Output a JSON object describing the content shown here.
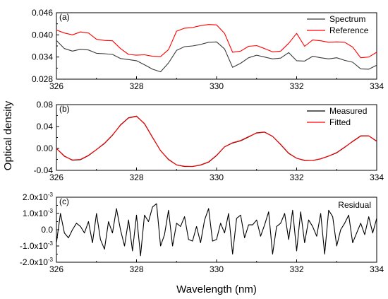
{
  "figure": {
    "ylabel": "Optical density",
    "xlabel": "Wavelength (nm)"
  },
  "colors": {
    "black": "#000000",
    "red": "#ff0000"
  },
  "chart_data": [
    {
      "panel": "(a)",
      "type": "line",
      "xlim": [
        326,
        334
      ],
      "ylim": [
        0.028,
        0.046
      ],
      "xticks": [
        "326",
        "328",
        "330",
        "332",
        "334"
      ],
      "yticks": [
        {
          "value": 0.028,
          "label": "0.028"
        },
        {
          "value": 0.034,
          "label": "0.034"
        },
        {
          "value": 0.04,
          "label": "0.040"
        },
        {
          "value": 0.046,
          "label": "0.046"
        }
      ],
      "legend_position": "top-right",
      "series": [
        {
          "name": "Spectrum",
          "color": "#3a3a3a",
          "x": [
            326.0,
            326.2,
            326.4,
            326.6,
            326.8,
            327.0,
            327.2,
            327.4,
            327.6,
            327.8,
            328.0,
            328.2,
            328.4,
            328.6,
            328.8,
            329.0,
            329.2,
            329.4,
            329.6,
            329.8,
            330.0,
            330.2,
            330.4,
            330.6,
            330.8,
            331.0,
            331.2,
            331.4,
            331.6,
            331.8,
            332.0,
            332.2,
            332.4,
            332.6,
            332.8,
            333.0,
            333.2,
            333.4,
            333.6,
            333.8,
            334.0
          ],
          "values": [
            0.0385,
            0.0363,
            0.0356,
            0.0361,
            0.0359,
            0.035,
            0.0349,
            0.0347,
            0.0336,
            0.0333,
            0.033,
            0.0319,
            0.0307,
            0.03,
            0.0324,
            0.0358,
            0.0368,
            0.037,
            0.0374,
            0.038,
            0.0381,
            0.0362,
            0.0312,
            0.0323,
            0.0338,
            0.0345,
            0.034,
            0.0335,
            0.0337,
            0.0352,
            0.033,
            0.0329,
            0.0342,
            0.0338,
            0.0335,
            0.0338,
            0.0331,
            0.0326,
            0.0308,
            0.0307,
            0.0318
          ]
        },
        {
          "name": "Reference",
          "color": "#ff0000",
          "x": [
            326.0,
            326.2,
            326.4,
            326.6,
            326.8,
            327.0,
            327.2,
            327.4,
            327.6,
            327.8,
            328.0,
            328.2,
            328.4,
            328.6,
            328.8,
            329.0,
            329.2,
            329.4,
            329.6,
            329.8,
            330.0,
            330.2,
            330.4,
            330.6,
            330.8,
            331.0,
            331.2,
            331.4,
            331.6,
            331.8,
            332.0,
            332.2,
            332.4,
            332.6,
            332.8,
            333.0,
            333.2,
            333.4,
            333.6,
            333.8,
            334.0
          ],
          "values": [
            0.0413,
            0.0405,
            0.04,
            0.0408,
            0.0405,
            0.0388,
            0.0385,
            0.0384,
            0.0363,
            0.0347,
            0.0345,
            0.0346,
            0.0342,
            0.0341,
            0.036,
            0.041,
            0.0418,
            0.042,
            0.0425,
            0.0428,
            0.0427,
            0.0404,
            0.0353,
            0.0356,
            0.0369,
            0.0371,
            0.0363,
            0.0354,
            0.0356,
            0.0377,
            0.0404,
            0.0369,
            0.0386,
            0.0384,
            0.038,
            0.0381,
            0.038,
            0.0367,
            0.0338,
            0.034,
            0.0353
          ]
        }
      ]
    },
    {
      "panel": "(b)",
      "type": "line",
      "xlim": [
        326,
        334
      ],
      "ylim": [
        -0.04,
        0.08
      ],
      "xticks": [
        "326",
        "328",
        "330",
        "332",
        "334"
      ],
      "yticks": [
        {
          "value": -0.04,
          "label": "-0.04"
        },
        {
          "value": 0.0,
          "label": "0.00"
        },
        {
          "value": 0.04,
          "label": "0.04"
        },
        {
          "value": 0.08,
          "label": "0.08"
        }
      ],
      "legend_position": "top-right",
      "series": [
        {
          "name": "Measured",
          "color": "#000000",
          "x": [
            326.0,
            326.2,
            326.4,
            326.6,
            326.8,
            327.0,
            327.2,
            327.4,
            327.6,
            327.8,
            328.0,
            328.2,
            328.4,
            328.6,
            328.8,
            329.0,
            329.2,
            329.4,
            329.6,
            329.8,
            330.0,
            330.2,
            330.4,
            330.6,
            330.8,
            331.0,
            331.2,
            331.4,
            331.6,
            331.8,
            332.0,
            332.2,
            332.4,
            332.6,
            332.8,
            333.0,
            333.2,
            333.4,
            333.6,
            333.8,
            334.0
          ],
          "values": [
            0.0,
            -0.014,
            -0.0215,
            -0.0205,
            -0.013,
            -0.002,
            0.009,
            0.024,
            0.043,
            0.056,
            0.059,
            0.045,
            0.02,
            -0.004,
            -0.02,
            -0.03,
            -0.033,
            -0.033,
            -0.0305,
            -0.025,
            -0.013,
            0.003,
            0.01,
            0.014,
            0.021,
            0.0285,
            0.03,
            0.022,
            0.007,
            -0.009,
            -0.018,
            -0.022,
            -0.022,
            -0.019,
            -0.014,
            -0.008,
            0.002,
            0.013,
            0.023,
            0.023,
            0.013
          ]
        },
        {
          "name": "Fitted",
          "color": "#ff0000",
          "x": [
            326.0,
            326.2,
            326.4,
            326.6,
            326.8,
            327.0,
            327.2,
            327.4,
            327.6,
            327.8,
            328.0,
            328.2,
            328.4,
            328.6,
            328.8,
            329.0,
            329.2,
            329.4,
            329.6,
            329.8,
            330.0,
            330.2,
            330.4,
            330.6,
            330.8,
            331.0,
            331.2,
            331.4,
            331.6,
            331.8,
            332.0,
            332.2,
            332.4,
            332.6,
            332.8,
            333.0,
            333.2,
            333.4,
            333.6,
            333.8,
            334.0
          ],
          "values": [
            0.0,
            -0.0145,
            -0.021,
            -0.02,
            -0.0125,
            -0.002,
            0.0095,
            0.0245,
            0.0425,
            0.0555,
            0.0585,
            0.0455,
            0.0205,
            -0.004,
            -0.0205,
            -0.03,
            -0.0325,
            -0.033,
            -0.03,
            -0.0245,
            -0.0125,
            0.003,
            0.0105,
            0.0145,
            0.0215,
            0.028,
            0.0295,
            0.022,
            0.0075,
            -0.0085,
            -0.018,
            -0.0215,
            -0.022,
            -0.019,
            -0.014,
            -0.0075,
            0.0025,
            0.0125,
            0.0225,
            0.023,
            0.0135
          ]
        }
      ]
    },
    {
      "panel": "(c)",
      "type": "line",
      "xlim": [
        326,
        334
      ],
      "ylim": [
        -0.002,
        0.002
      ],
      "xticks": [
        "326",
        "328",
        "330",
        "332",
        "334"
      ],
      "yticks": [
        {
          "value": -0.002,
          "base": "-2.0x10",
          "exp": "-3"
        },
        {
          "value": -0.001,
          "base": "-1.0x10",
          "exp": "-3"
        },
        {
          "value": 0.0,
          "base": "0.0",
          "exp": ""
        },
        {
          "value": 0.001,
          "base": "1.0x10",
          "exp": "-3"
        },
        {
          "value": 0.002,
          "base": "2.0x10",
          "exp": "-3"
        }
      ],
      "legend_position": "top-right",
      "series": [
        {
          "name": "Residual",
          "color": "#000000",
          "x": [
            326.0,
            326.1,
            326.2,
            326.3,
            326.4,
            326.5,
            326.6,
            326.7,
            326.8,
            326.9,
            327.0,
            327.1,
            327.2,
            327.3,
            327.4,
            327.5,
            327.6,
            327.7,
            327.8,
            327.9,
            328.0,
            328.1,
            328.2,
            328.3,
            328.4,
            328.5,
            328.6,
            328.7,
            328.8,
            328.9,
            329.0,
            329.1,
            329.2,
            329.3,
            329.4,
            329.5,
            329.6,
            329.7,
            329.8,
            329.9,
            330.0,
            330.1,
            330.2,
            330.3,
            330.4,
            330.5,
            330.6,
            330.7,
            330.8,
            330.9,
            331.0,
            331.1,
            331.2,
            331.3,
            331.4,
            331.5,
            331.6,
            331.7,
            331.8,
            331.9,
            332.0,
            332.1,
            332.2,
            332.3,
            332.4,
            332.5,
            332.6,
            332.7,
            332.8,
            332.9,
            333.0,
            333.1,
            333.2,
            333.3,
            333.4,
            333.5,
            333.6,
            333.7,
            333.8,
            333.9,
            334.0
          ],
          "values": [
            -0.0008,
            0.001,
            -0.0002,
            -0.0005,
            0.0,
            0.0004,
            0.0002,
            -0.0002,
            0.0005,
            -0.0008,
            0.001,
            -0.0006,
            -0.0012,
            0.0005,
            -0.0002,
            0.0013,
            0.0,
            -0.001,
            0.0006,
            -0.0013,
            0.0009,
            -0.0016,
            0.0009,
            0.0005,
            0.0014,
            0.0016,
            -0.001,
            -0.0003,
            0.0012,
            -0.001,
            0.0004,
            0.0002,
            0.0008,
            -0.0006,
            -0.0007,
            0.0002,
            -0.0008,
            0.0006,
            0.0013,
            -0.0007,
            -0.0006,
            0.0004,
            -0.0002,
            0.001,
            -0.0015,
            0.0007,
            0.0009,
            -0.0005,
            0.0003,
            0.0003,
            0.0006,
            -0.0004,
            0.0003,
            0.0011,
            -0.0015,
            0.0002,
            0.0004,
            0.001,
            -0.0006,
            0.0012,
            -0.0013,
            0.0011,
            -0.0008,
            0.0006,
            0.0002,
            -0.0004,
            0.001,
            -0.0015,
            0.0012,
            0.0008,
            -0.001,
            0.0,
            0.0004,
            0.0009,
            -0.0008,
            -0.0002,
            0.0004,
            -0.0003,
            0.0008,
            -0.0002,
            0.0007
          ]
        }
      ]
    }
  ]
}
